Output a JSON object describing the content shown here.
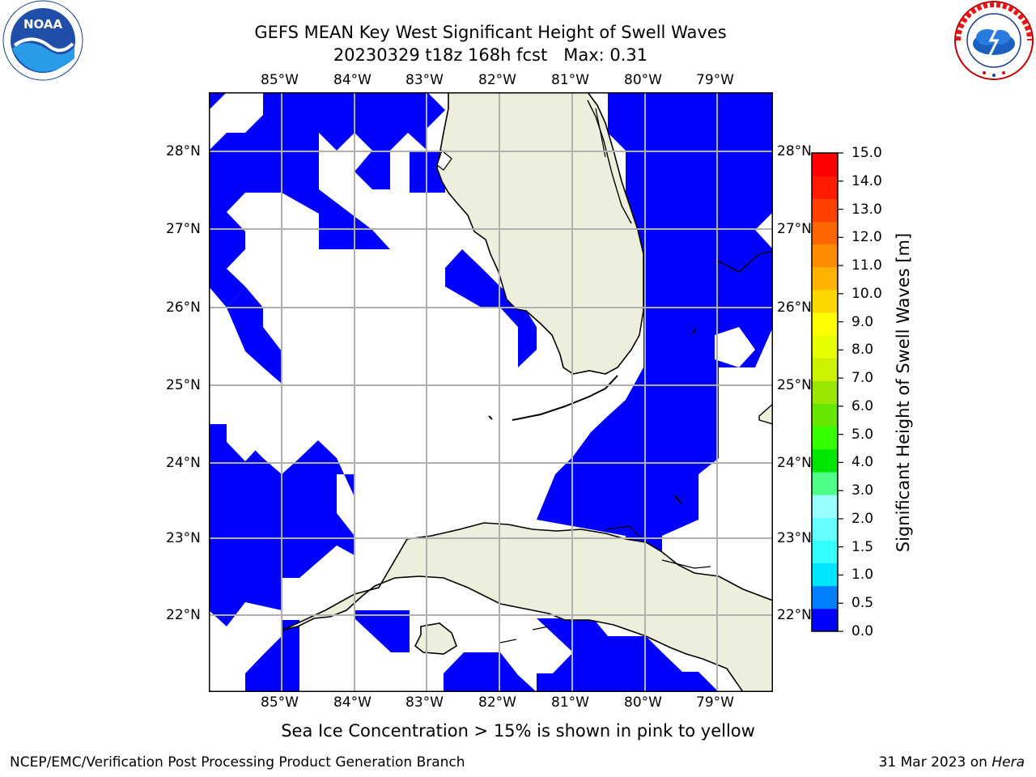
{
  "header": {
    "title_line1": "GEFS MEAN Key West Significant Height of Swell Waves",
    "title_line2": "20230329 t18z 168h fcst   Max: 0.31"
  },
  "logos": {
    "left_text": "NOAA",
    "left_ring_text": "NATIONAL OCEANIC AND ATMOSPHERIC ADMINISTRATION · U.S. DEPARTMENT OF COMMERCE",
    "right_ring_text": "NATIONAL WEATHER SERVICE"
  },
  "map": {
    "lon_labels": [
      "85°W",
      "84°W",
      "83°W",
      "82°W",
      "81°W",
      "80°W",
      "79°W"
    ],
    "lat_labels": [
      "28°N",
      "27°N",
      "26°N",
      "25°N",
      "24°N",
      "23°N",
      "22°N"
    ],
    "colors": {
      "land": "#eeeedc",
      "coast": "#000000",
      "grid": "#b0b0b0",
      "swell": "#0000ff"
    }
  },
  "colorbar": {
    "label": "Significant Height of Swell Waves [m]",
    "tick_labels": [
      "15.0",
      "14.0",
      "13.0",
      "12.0",
      "11.0",
      "10.0",
      "9.0",
      "8.0",
      "7.0",
      "6.0",
      "5.0",
      "4.0",
      "3.0",
      "2.0",
      "1.5",
      "1.0",
      "0.5",
      "0.0"
    ],
    "colors": [
      "#0000ff",
      "#0080ff",
      "#00e5ff",
      "#33ffff",
      "#66ffff",
      "#99ffff",
      "#4dff88",
      "#00e600",
      "#33ff00",
      "#66e600",
      "#99e600",
      "#ccf200",
      "#e6ff00",
      "#ffff00",
      "#ffd700",
      "#ffb300",
      "#ff8c00",
      "#ff6600",
      "#ff4000",
      "#ff1a00",
      "#ff0000"
    ]
  },
  "footer": {
    "caption": "Sea Ice Concentration > 15% is shown in pink to yellow",
    "credit": "NCEP/EMC/Verification Post Processing Product Generation Branch",
    "date": "31 Mar 2023 on ",
    "machine": "Hera"
  }
}
